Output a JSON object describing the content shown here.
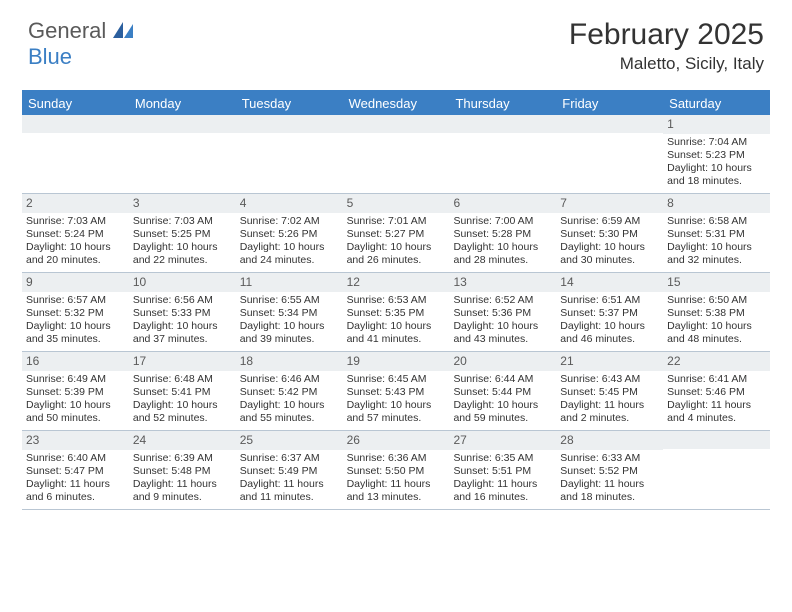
{
  "logo": {
    "word1": "General",
    "word2": "Blue"
  },
  "title": "February 2025",
  "location": "Maletto, Sicily, Italy",
  "colors": {
    "header_bg": "#3b7fc4",
    "daynum_bg": "#eceff1",
    "text": "#333333",
    "border": "#b9c6d3"
  },
  "weekdays": [
    "Sunday",
    "Monday",
    "Tuesday",
    "Wednesday",
    "Thursday",
    "Friday",
    "Saturday"
  ],
  "weeks": [
    [
      {
        "n": "",
        "l1": "",
        "l2": "",
        "l3": "",
        "l4": ""
      },
      {
        "n": "",
        "l1": "",
        "l2": "",
        "l3": "",
        "l4": ""
      },
      {
        "n": "",
        "l1": "",
        "l2": "",
        "l3": "",
        "l4": ""
      },
      {
        "n": "",
        "l1": "",
        "l2": "",
        "l3": "",
        "l4": ""
      },
      {
        "n": "",
        "l1": "",
        "l2": "",
        "l3": "",
        "l4": ""
      },
      {
        "n": "",
        "l1": "",
        "l2": "",
        "l3": "",
        "l4": ""
      },
      {
        "n": "1",
        "l1": "Sunrise: 7:04 AM",
        "l2": "Sunset: 5:23 PM",
        "l3": "Daylight: 10 hours",
        "l4": "and 18 minutes."
      }
    ],
    [
      {
        "n": "2",
        "l1": "Sunrise: 7:03 AM",
        "l2": "Sunset: 5:24 PM",
        "l3": "Daylight: 10 hours",
        "l4": "and 20 minutes."
      },
      {
        "n": "3",
        "l1": "Sunrise: 7:03 AM",
        "l2": "Sunset: 5:25 PM",
        "l3": "Daylight: 10 hours",
        "l4": "and 22 minutes."
      },
      {
        "n": "4",
        "l1": "Sunrise: 7:02 AM",
        "l2": "Sunset: 5:26 PM",
        "l3": "Daylight: 10 hours",
        "l4": "and 24 minutes."
      },
      {
        "n": "5",
        "l1": "Sunrise: 7:01 AM",
        "l2": "Sunset: 5:27 PM",
        "l3": "Daylight: 10 hours",
        "l4": "and 26 minutes."
      },
      {
        "n": "6",
        "l1": "Sunrise: 7:00 AM",
        "l2": "Sunset: 5:28 PM",
        "l3": "Daylight: 10 hours",
        "l4": "and 28 minutes."
      },
      {
        "n": "7",
        "l1": "Sunrise: 6:59 AM",
        "l2": "Sunset: 5:30 PM",
        "l3": "Daylight: 10 hours",
        "l4": "and 30 minutes."
      },
      {
        "n": "8",
        "l1": "Sunrise: 6:58 AM",
        "l2": "Sunset: 5:31 PM",
        "l3": "Daylight: 10 hours",
        "l4": "and 32 minutes."
      }
    ],
    [
      {
        "n": "9",
        "l1": "Sunrise: 6:57 AM",
        "l2": "Sunset: 5:32 PM",
        "l3": "Daylight: 10 hours",
        "l4": "and 35 minutes."
      },
      {
        "n": "10",
        "l1": "Sunrise: 6:56 AM",
        "l2": "Sunset: 5:33 PM",
        "l3": "Daylight: 10 hours",
        "l4": "and 37 minutes."
      },
      {
        "n": "11",
        "l1": "Sunrise: 6:55 AM",
        "l2": "Sunset: 5:34 PM",
        "l3": "Daylight: 10 hours",
        "l4": "and 39 minutes."
      },
      {
        "n": "12",
        "l1": "Sunrise: 6:53 AM",
        "l2": "Sunset: 5:35 PM",
        "l3": "Daylight: 10 hours",
        "l4": "and 41 minutes."
      },
      {
        "n": "13",
        "l1": "Sunrise: 6:52 AM",
        "l2": "Sunset: 5:36 PM",
        "l3": "Daylight: 10 hours",
        "l4": "and 43 minutes."
      },
      {
        "n": "14",
        "l1": "Sunrise: 6:51 AM",
        "l2": "Sunset: 5:37 PM",
        "l3": "Daylight: 10 hours",
        "l4": "and 46 minutes."
      },
      {
        "n": "15",
        "l1": "Sunrise: 6:50 AM",
        "l2": "Sunset: 5:38 PM",
        "l3": "Daylight: 10 hours",
        "l4": "and 48 minutes."
      }
    ],
    [
      {
        "n": "16",
        "l1": "Sunrise: 6:49 AM",
        "l2": "Sunset: 5:39 PM",
        "l3": "Daylight: 10 hours",
        "l4": "and 50 minutes."
      },
      {
        "n": "17",
        "l1": "Sunrise: 6:48 AM",
        "l2": "Sunset: 5:41 PM",
        "l3": "Daylight: 10 hours",
        "l4": "and 52 minutes."
      },
      {
        "n": "18",
        "l1": "Sunrise: 6:46 AM",
        "l2": "Sunset: 5:42 PM",
        "l3": "Daylight: 10 hours",
        "l4": "and 55 minutes."
      },
      {
        "n": "19",
        "l1": "Sunrise: 6:45 AM",
        "l2": "Sunset: 5:43 PM",
        "l3": "Daylight: 10 hours",
        "l4": "and 57 minutes."
      },
      {
        "n": "20",
        "l1": "Sunrise: 6:44 AM",
        "l2": "Sunset: 5:44 PM",
        "l3": "Daylight: 10 hours",
        "l4": "and 59 minutes."
      },
      {
        "n": "21",
        "l1": "Sunrise: 6:43 AM",
        "l2": "Sunset: 5:45 PM",
        "l3": "Daylight: 11 hours",
        "l4": "and 2 minutes."
      },
      {
        "n": "22",
        "l1": "Sunrise: 6:41 AM",
        "l2": "Sunset: 5:46 PM",
        "l3": "Daylight: 11 hours",
        "l4": "and 4 minutes."
      }
    ],
    [
      {
        "n": "23",
        "l1": "Sunrise: 6:40 AM",
        "l2": "Sunset: 5:47 PM",
        "l3": "Daylight: 11 hours",
        "l4": "and 6 minutes."
      },
      {
        "n": "24",
        "l1": "Sunrise: 6:39 AM",
        "l2": "Sunset: 5:48 PM",
        "l3": "Daylight: 11 hours",
        "l4": "and 9 minutes."
      },
      {
        "n": "25",
        "l1": "Sunrise: 6:37 AM",
        "l2": "Sunset: 5:49 PM",
        "l3": "Daylight: 11 hours",
        "l4": "and 11 minutes."
      },
      {
        "n": "26",
        "l1": "Sunrise: 6:36 AM",
        "l2": "Sunset: 5:50 PM",
        "l3": "Daylight: 11 hours",
        "l4": "and 13 minutes."
      },
      {
        "n": "27",
        "l1": "Sunrise: 6:35 AM",
        "l2": "Sunset: 5:51 PM",
        "l3": "Daylight: 11 hours",
        "l4": "and 16 minutes."
      },
      {
        "n": "28",
        "l1": "Sunrise: 6:33 AM",
        "l2": "Sunset: 5:52 PM",
        "l3": "Daylight: 11 hours",
        "l4": "and 18 minutes."
      },
      {
        "n": "",
        "l1": "",
        "l2": "",
        "l3": "",
        "l4": ""
      }
    ]
  ]
}
